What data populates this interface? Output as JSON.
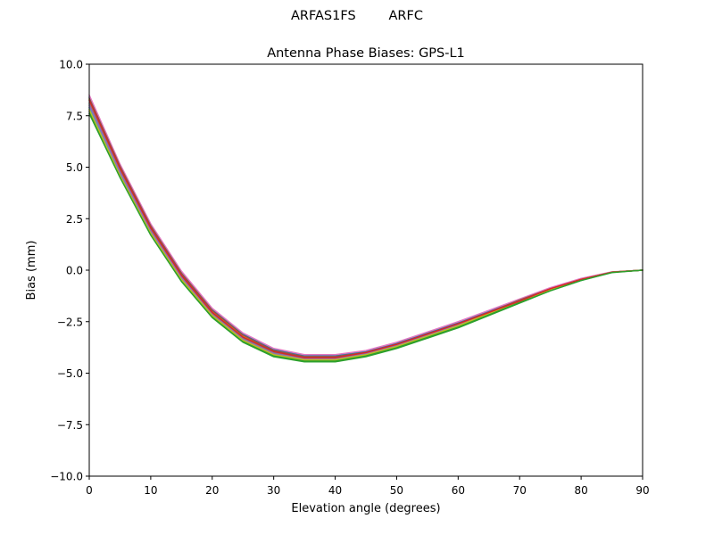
{
  "figure": {
    "suptitle": "ARFAS1FS        ARFC"
  },
  "chart_data": {
    "type": "line",
    "title": "Antenna Phase Biases: GPS-L1",
    "xlabel": "Elevation angle (degrees)",
    "ylabel": "Bias (mm)",
    "xlim": [
      0,
      90
    ],
    "ylim": [
      -10.0,
      10.0
    ],
    "xticks": [
      0,
      10,
      20,
      30,
      40,
      50,
      60,
      70,
      80,
      90
    ],
    "xtick_labels": [
      "0",
      "10",
      "20",
      "30",
      "40",
      "50",
      "60",
      "70",
      "80",
      "90"
    ],
    "yticks": [
      -10.0,
      -7.5,
      -5.0,
      -2.5,
      0.0,
      2.5,
      5.0,
      7.5,
      10.0
    ],
    "ytick_labels": [
      "−10.0",
      "−7.5",
      "−5.0",
      "−2.5",
      "0.0",
      "2.5",
      "5.0",
      "7.5",
      "10.0"
    ],
    "grid": false,
    "legend": false,
    "x": [
      0,
      5,
      10,
      15,
      20,
      25,
      30,
      35,
      40,
      45,
      50,
      55,
      60,
      65,
      70,
      75,
      80,
      85,
      90
    ],
    "series": [
      {
        "color": "#1f77b4",
        "values": [
          8.4,
          5.1,
          2.2,
          -0.1,
          -1.9,
          -3.1,
          -3.85,
          -4.15,
          -4.15,
          -3.95,
          -3.55,
          -3.05,
          -2.55,
          -2.0,
          -1.45,
          -0.9,
          -0.45,
          -0.1,
          0.0
        ]
      },
      {
        "color": "#ff7f0e",
        "values": [
          8.3,
          5.0,
          2.1,
          -0.2,
          -2.0,
          -3.2,
          -3.9,
          -4.2,
          -4.2,
          -4.0,
          -3.6,
          -3.1,
          -2.6,
          -2.05,
          -1.5,
          -0.95,
          -0.45,
          -0.1,
          0.0
        ]
      },
      {
        "color": "#e377c2",
        "values": [
          8.5,
          5.15,
          2.25,
          -0.05,
          -1.85,
          -3.05,
          -3.8,
          -4.1,
          -4.1,
          -3.9,
          -3.5,
          -3.0,
          -2.5,
          -1.95,
          -1.4,
          -0.85,
          -0.4,
          -0.08,
          0.0
        ]
      },
      {
        "color": "#8c564b",
        "values": [
          8.35,
          5.05,
          2.15,
          -0.15,
          -1.95,
          -3.15,
          -3.9,
          -4.2,
          -4.2,
          -4.0,
          -3.6,
          -3.1,
          -2.6,
          -2.05,
          -1.45,
          -0.9,
          -0.45,
          -0.1,
          0.0
        ]
      },
      {
        "color": "#7f7f7f",
        "values": [
          8.1,
          4.85,
          1.95,
          -0.3,
          -2.1,
          -3.3,
          -4.0,
          -4.3,
          -4.3,
          -4.05,
          -3.65,
          -3.15,
          -2.65,
          -2.1,
          -1.5,
          -0.95,
          -0.45,
          -0.1,
          0.0
        ]
      },
      {
        "color": "#17becf",
        "values": [
          7.9,
          4.7,
          1.85,
          -0.4,
          -2.2,
          -3.4,
          -4.1,
          -4.35,
          -4.35,
          -4.1,
          -3.7,
          -3.2,
          -2.7,
          -2.1,
          -1.55,
          -0.95,
          -0.5,
          -0.1,
          0.0
        ]
      },
      {
        "color": "#9467bd",
        "values": [
          8.0,
          4.75,
          1.9,
          -0.35,
          -2.15,
          -3.35,
          -4.05,
          -4.3,
          -4.3,
          -4.05,
          -3.65,
          -3.15,
          -2.65,
          -2.1,
          -1.5,
          -0.95,
          -0.45,
          -0.1,
          0.0
        ]
      },
      {
        "color": "#2ca02c",
        "values": [
          7.7,
          4.55,
          1.75,
          -0.5,
          -2.25,
          -3.45,
          -4.15,
          -4.4,
          -4.4,
          -4.15,
          -3.75,
          -3.25,
          -2.75,
          -2.15,
          -1.55,
          -1.0,
          -0.5,
          -0.1,
          0.0
        ]
      },
      {
        "color": "#bcbd22",
        "values": [
          7.8,
          4.6,
          1.8,
          -0.45,
          -2.2,
          -3.4,
          -4.1,
          -4.35,
          -4.35,
          -4.1,
          -3.7,
          -3.2,
          -2.7,
          -2.1,
          -1.5,
          -0.95,
          -0.45,
          -0.1,
          0.0
        ]
      },
      {
        "color": "#d62728",
        "values": [
          8.25,
          4.95,
          2.05,
          -0.25,
          -2.05,
          -3.25,
          -3.95,
          -4.25,
          -4.25,
          -4.0,
          -3.6,
          -3.1,
          -2.6,
          -2.05,
          -1.5,
          -0.9,
          -0.45,
          -0.1,
          0.0
        ]
      },
      {
        "color": "#2ca02c",
        "values": [
          7.6,
          4.5,
          1.7,
          -0.55,
          -2.3,
          -3.5,
          -4.2,
          -4.45,
          -4.45,
          -4.2,
          -3.8,
          -3.3,
          -2.8,
          -2.2,
          -1.6,
          -1.0,
          -0.5,
          -0.12,
          0.0
        ]
      }
    ]
  }
}
